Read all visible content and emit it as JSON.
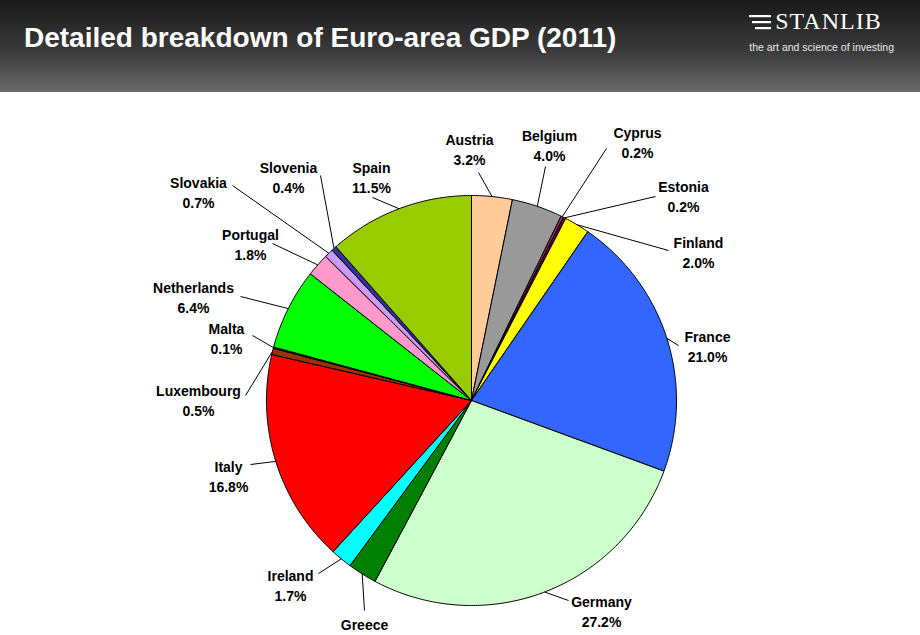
{
  "branding": {
    "name": "STANLIB",
    "tagline": "the art and science of investing"
  },
  "chart_data": {
    "type": "pie",
    "title": "Detailed breakdown of Euro-area GDP (2011)",
    "categories": [
      "Austria",
      "Belgium",
      "Cyprus",
      "Estonia",
      "Finland",
      "France",
      "Germany",
      "Greece",
      "Ireland",
      "Italy",
      "Luxembourg",
      "Malta",
      "Netherlands",
      "Portugal",
      "Slovakia",
      "Slovenia",
      "Spain"
    ],
    "values": [
      3.2,
      4.0,
      0.2,
      0.2,
      2.0,
      21.0,
      27.2,
      2.3,
      1.7,
      16.8,
      0.5,
      0.1,
      6.4,
      1.8,
      0.7,
      0.4,
      11.5
    ],
    "value_labels": [
      "3.2%",
      "4.0%",
      "0.2%",
      "0.2%",
      "2.0%",
      "21.0%",
      "27.2%",
      null,
      "1.7%",
      "16.8%",
      "0.5%",
      "0.1%",
      "6.4%",
      "1.8%",
      "0.7%",
      "0.4%",
      "11.5%"
    ],
    "colors": [
      "#ffcc99",
      "#999999",
      "#993366",
      "#660033",
      "#ffff00",
      "#3366ff",
      "#ccffcc",
      "#008000",
      "#00ffff",
      "#ff0000",
      "#993300",
      "#800000",
      "#00ff00",
      "#ff99cc",
      "#cc99ff",
      "#333399",
      "#99cc00"
    ],
    "data_labels": true
  }
}
